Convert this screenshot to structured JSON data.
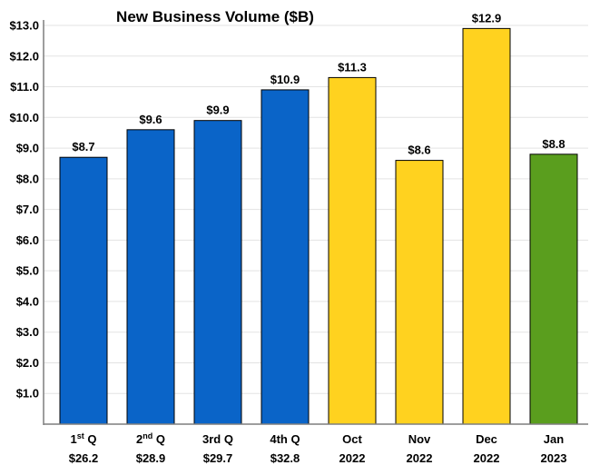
{
  "chart_data": {
    "type": "bar",
    "title": "New Business Volume ($B)",
    "xlabel": "",
    "ylabel": "",
    "ylim": [
      0,
      13.0
    ],
    "yticks": [
      "$1.0",
      "$2.0",
      "$3.0",
      "$4.0",
      "$5.0",
      "$6.0",
      "$7.0",
      "$8.0",
      "$9.0",
      "$10.0",
      "$11.0",
      "$12.0",
      "$13.0"
    ],
    "grid": true,
    "categories": [
      {
        "line1": "1",
        "sup": "st",
        "line1_rest": " Q",
        "line2": "$26.2"
      },
      {
        "line1": "2",
        "sup": "nd",
        "line1_rest": " Q",
        "line2": "$28.9"
      },
      {
        "line1": "3rd Q",
        "sup": "",
        "line1_rest": "",
        "line2": "$29.7"
      },
      {
        "line1": "4th Q",
        "sup": "",
        "line1_rest": "",
        "line2": "$32.8"
      },
      {
        "line1": "Oct",
        "sup": "",
        "line1_rest": "",
        "line2": "2022"
      },
      {
        "line1": "Nov",
        "sup": "",
        "line1_rest": "",
        "line2": "2022"
      },
      {
        "line1": "Dec",
        "sup": "",
        "line1_rest": "",
        "line2": "2022"
      },
      {
        "line1": "Jan",
        "sup": "",
        "line1_rest": "",
        "line2": "2023"
      }
    ],
    "values": [
      8.7,
      9.6,
      9.9,
      10.9,
      11.3,
      8.6,
      12.9,
      8.8
    ],
    "data_labels": [
      "$8.7",
      "$9.6",
      "$9.9",
      "$10.9",
      "$11.3",
      "$8.6",
      "$12.9",
      "$8.8"
    ],
    "colors": [
      "#0a64c8",
      "#0a64c8",
      "#0a64c8",
      "#0a64c8",
      "#ffd21f",
      "#ffd21f",
      "#ffd21f",
      "#5a9e1e"
    ]
  }
}
